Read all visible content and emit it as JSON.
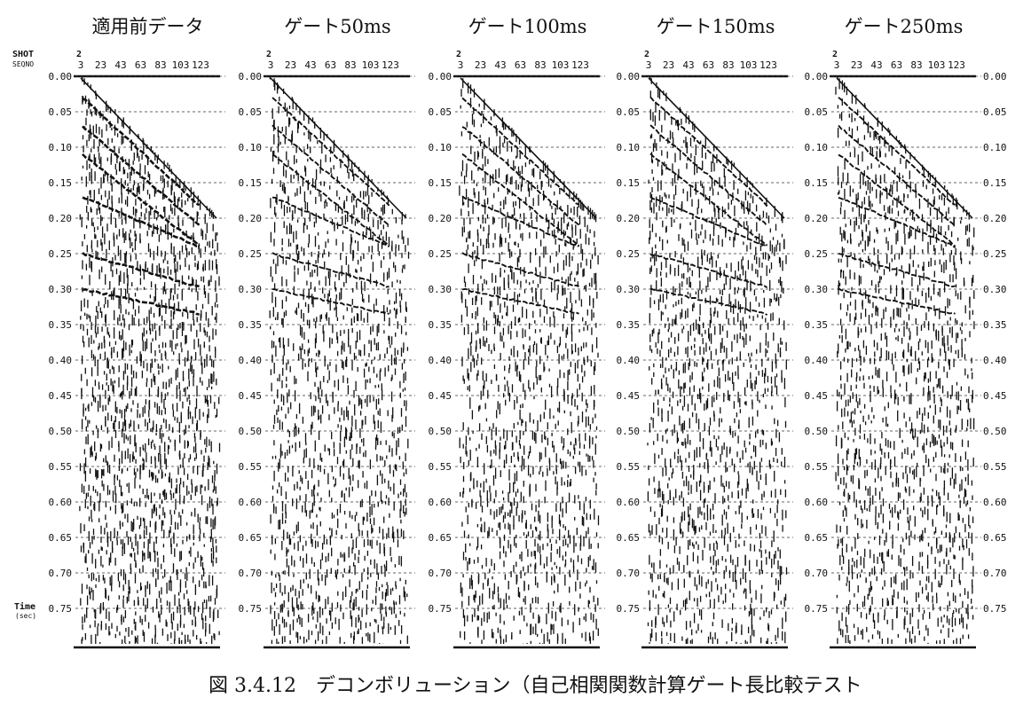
{
  "caption": "図 3.4.12　デコンボリューション（自己相関関数計算ゲート長比較テスト",
  "left_labels": {
    "shot": "SHOT",
    "seqno": "SEQNO",
    "time": "Time",
    "time_unit": "(sec)"
  },
  "chart_data": {
    "type": "heatmap",
    "description_source": "seismic shot gather wiggle panels",
    "shot_number": "2",
    "trace_ticks": [
      "3",
      "23",
      "43",
      "63",
      "83",
      "103",
      "123"
    ],
    "time_ticks": [
      "0.00",
      "0.05",
      "0.10",
      "0.15",
      "0.20",
      "0.25",
      "0.30",
      "0.35",
      "0.40",
      "0.45",
      "0.50",
      "0.55",
      "0.60",
      "0.65",
      "0.70",
      "0.75"
    ],
    "time_range": [
      0.0,
      0.8
    ],
    "grid": "dashed horizontal at each time tick",
    "panels": [
      {
        "title": "適用前データ",
        "gate_ms": null
      },
      {
        "title": "ゲート50ms",
        "gate_ms": 50
      },
      {
        "title": "ゲート100ms",
        "gate_ms": 100
      },
      {
        "title": "ゲート150ms",
        "gate_ms": 150
      },
      {
        "title": "ゲート250ms",
        "gate_ms": 250
      }
    ]
  }
}
